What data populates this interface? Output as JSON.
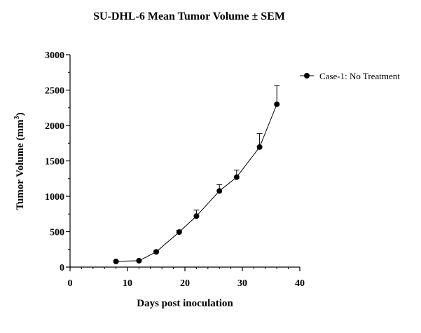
{
  "chart_data": {
    "type": "line",
    "title": "SU-DHL-6 Mean Tumor Volume ± SEM",
    "xlabel": "Days post inoculation",
    "ylabel": "Tumor Volume (mm",
    "ylabel_sup": "3",
    "ylabel_close": ")",
    "xlim": [
      0,
      40
    ],
    "ylim": [
      0,
      3000
    ],
    "x_ticks": [
      "0",
      "10",
      "20",
      "30",
      "40"
    ],
    "y_ticks": [
      "0",
      "500",
      "1000",
      "1500",
      "2000",
      "2500",
      "3000"
    ],
    "grid": false,
    "legend_position": "top-right",
    "series": [
      {
        "name": "Case-1: No Treatment",
        "color": "#000000",
        "x": [
          8,
          12,
          15,
          19,
          22,
          26,
          29,
          33,
          36
        ],
        "y": [
          80,
          90,
          215,
          495,
          720,
          1075,
          1270,
          1695,
          2300
        ],
        "sem": [
          5,
          8,
          12,
          25,
          85,
          90,
          100,
          190,
          265
        ]
      }
    ]
  }
}
